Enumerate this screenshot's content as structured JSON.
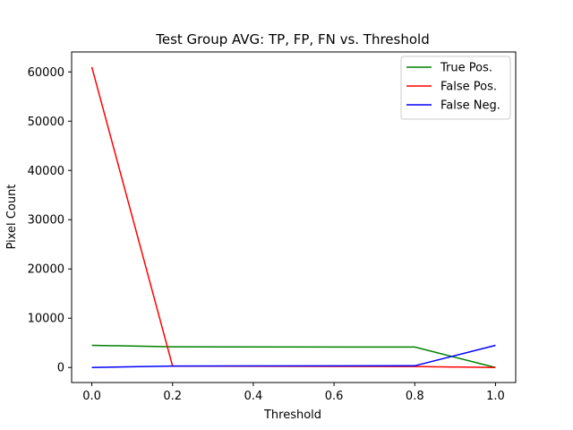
{
  "chart_data": {
    "type": "line",
    "title": "Test Group AVG: TP, FP, FN vs. Threshold",
    "xlabel": "Threshold",
    "ylabel": "Pixel Count",
    "xlim": [
      -0.05,
      1.05
    ],
    "ylim": [
      -3050,
      64050
    ],
    "xticks": [
      0.0,
      0.2,
      0.4,
      0.6,
      0.8,
      1.0
    ],
    "xtick_labels": [
      "0.0",
      "0.2",
      "0.4",
      "0.6",
      "0.8",
      "1.0"
    ],
    "yticks": [
      0,
      10000,
      20000,
      30000,
      40000,
      50000,
      60000
    ],
    "ytick_labels": [
      "0",
      "10000",
      "20000",
      "30000",
      "40000",
      "50000",
      "60000"
    ],
    "grid": false,
    "legend_position": "top-right",
    "x": [
      0.0,
      0.2,
      0.8,
      1.0
    ],
    "series": [
      {
        "name": "True Pos.",
        "color": "#008000",
        "values": [
          4500,
          4200,
          4150,
          0
        ]
      },
      {
        "name": "False Pos.",
        "color": "#ff0000",
        "values": [
          61000,
          300,
          200,
          0
        ]
      },
      {
        "name": "False Neg.",
        "color": "#0000ff",
        "values": [
          0,
          300,
          350,
          4500
        ]
      }
    ]
  }
}
